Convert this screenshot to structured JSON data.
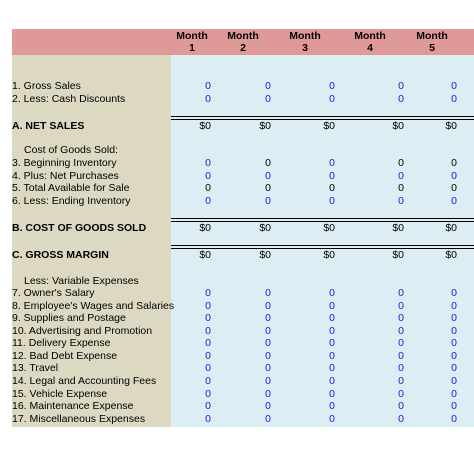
{
  "header": {
    "months": [
      {
        "label": "Month",
        "number": "1"
      },
      {
        "label": "Month",
        "number": "2"
      },
      {
        "label": "Month",
        "number": "3"
      },
      {
        "label": "Month",
        "number": "4"
      },
      {
        "label": "Month",
        "number": "5"
      }
    ]
  },
  "input_color": "#1a1adb",
  "rows": [
    {
      "label": "1. Gross Sales",
      "values": [
        "0",
        "0",
        "0",
        "0",
        "0"
      ]
    },
    {
      "label": "2. Less: Cash Discounts",
      "values": [
        "0",
        "0",
        "0",
        "0",
        "0"
      ]
    },
    {
      "label": "A. NET SALES",
      "bold": true,
      "values": [
        "$0",
        "$0",
        "$0",
        "$0",
        "$0"
      ]
    },
    {
      "label": "Cost of Goods Sold:",
      "indent": true
    },
    {
      "label": "3. Beginning Inventory",
      "values": [
        "0",
        "0",
        "0",
        "0",
        "0"
      ],
      "colors": [
        "#1a1adb",
        "#000000",
        "#1a1adb",
        "#000000",
        "#000000"
      ]
    },
    {
      "label": "4. Plus: Net Purchases",
      "values": [
        "0",
        "0",
        "0",
        "0",
        "0"
      ]
    },
    {
      "label": "5. Total Available for Sale",
      "values": [
        "0",
        "0",
        "0",
        "0",
        "0"
      ],
      "colors": [
        "#000000",
        "#000000",
        "#000000",
        "#000000",
        "#000000"
      ]
    },
    {
      "label": "6. Less: Ending Inventory",
      "values": [
        "0",
        "0",
        "0",
        "0",
        "0"
      ]
    },
    {
      "label": "B. COST OF GOODS SOLD",
      "bold": true,
      "values": [
        "$0",
        "$0",
        "$0",
        "$0",
        "$0"
      ]
    },
    {
      "label": "C. GROSS MARGIN",
      "bold": true,
      "values": [
        "$0",
        "$0",
        "$0",
        "$0",
        "$0"
      ]
    },
    {
      "label": "Less: Variable Expenses",
      "indent": true
    },
    {
      "label": "7. Owner's Salary",
      "values": [
        "0",
        "0",
        "0",
        "0",
        "0"
      ]
    },
    {
      "label": "8. Employee's Wages and Salaries",
      "values": [
        "0",
        "0",
        "0",
        "0",
        "0"
      ]
    },
    {
      "label": "9. Supplies and Postage",
      "values": [
        "0",
        "0",
        "0",
        "0",
        "0"
      ]
    },
    {
      "label": "10. Advertising and Promotion",
      "values": [
        "0",
        "0",
        "0",
        "0",
        "0"
      ]
    },
    {
      "label": "11. Delivery Expense",
      "values": [
        "0",
        "0",
        "0",
        "0",
        "0"
      ]
    },
    {
      "label": "12. Bad Debt Expense",
      "values": [
        "0",
        "0",
        "0",
        "0",
        "0"
      ]
    },
    {
      "label": "13. Travel",
      "values": [
        "0",
        "0",
        "0",
        "0",
        "0"
      ]
    },
    {
      "label": "14. Legal and Accounting Fees",
      "values": [
        "0",
        "0",
        "0",
        "0",
        "0"
      ]
    },
    {
      "label": "15. Vehicle Expense",
      "values": [
        "0",
        "0",
        "0",
        "0",
        "0"
      ]
    },
    {
      "label": "16. Maintenance Expense",
      "values": [
        "0",
        "0",
        "0",
        "0",
        "0"
      ]
    },
    {
      "label": "17. Miscellaneous Expenses",
      "values": [
        "0",
        "0",
        "0",
        "0",
        "0"
      ]
    }
  ]
}
